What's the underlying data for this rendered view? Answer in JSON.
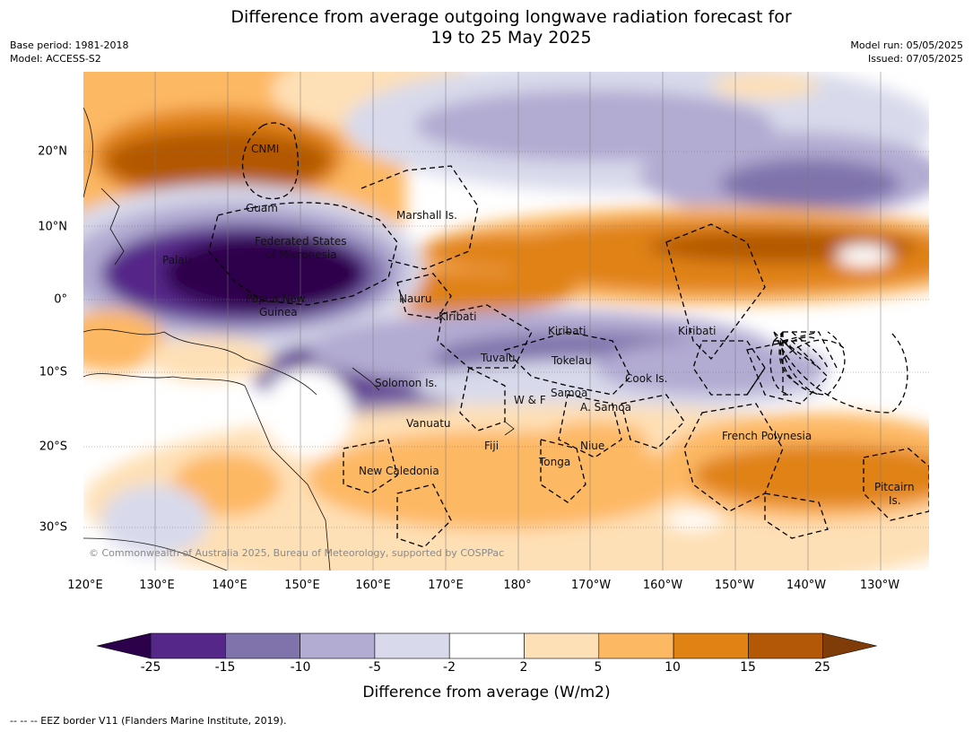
{
  "header": {
    "title_line1": "Difference from average outgoing longwave radiation forecast for",
    "title_line2": "19 to 25 May 2025",
    "base_period": "Base period: 1981-2018",
    "model": "Model: ACCESS-S2",
    "model_run": "Model run: 05/05/2025",
    "issued": "Issued: 07/05/2025"
  },
  "axes": {
    "lon_ticks": [
      "120°E",
      "130°E",
      "140°E",
      "150°E",
      "160°E",
      "170°E",
      "180°",
      "170°W",
      "160°W",
      "150°W",
      "140°W",
      "130°W"
    ],
    "lat_ticks": [
      "20°N",
      "10°N",
      "0°",
      "10°S",
      "20°S",
      "30°S"
    ]
  },
  "labels": {
    "cnmi": "CNMI",
    "guam": "Guam",
    "marshall": "Marshall Is.",
    "fsm1": "Federated States",
    "fsm2": "of Micronesia",
    "palau": "Palau",
    "nauru": "Nauru",
    "png1": "Papua New",
    "png2": "Guinea",
    "kiribati1": "Kiribati",
    "kiribati2": "Kiribati",
    "kiribati3": "Kiribati",
    "tuvalu": "Tuvalu",
    "tokelau": "Tokelau",
    "cook": "Cook Is.",
    "solomon": "Solomon Is.",
    "samoa": "Samoa",
    "wf": "W & F",
    "asamoa": "A. Samoa",
    "vanuatu": "Vanuatu",
    "fiji": "Fiji",
    "niue": "Niue",
    "tonga": "Tonga",
    "newcal": "New Caledonia",
    "frpoly": "French Polynesia",
    "pitcairn1": "Pitcairn",
    "pitcairn2": "Is.",
    "copyright": "© Commonwealth of Australia 2025, Bureau of Meteorology, supported by COSPPac"
  },
  "legend": {
    "ticks": [
      "-25",
      "-15",
      "-10",
      "-5",
      "-2",
      "2",
      "5",
      "10",
      "15",
      "25"
    ],
    "colors": [
      "#2d004b",
      "#542788",
      "#8073ac",
      "#b2abd2",
      "#d8daeb",
      "#ffffff",
      "#fee0b6",
      "#fdb863",
      "#e08214",
      "#b35806",
      "#7f3b08"
    ],
    "title": "Difference from average (W/m2)"
  },
  "footer": {
    "eez_note": "--  --  -- EEZ border V11 (Flanders Marine Institute, 2019)."
  }
}
